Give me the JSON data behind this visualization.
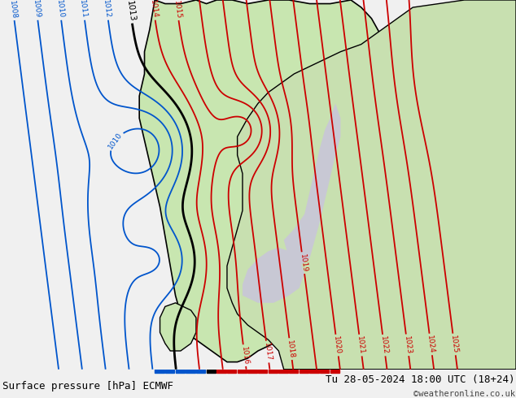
{
  "title_left": "Surface pressure [hPa] ECMWF",
  "title_right": "Tu 28-05-2024 18:00 UTC (18+24)",
  "copyright": "©weatheronline.co.uk",
  "sea_color": "#c8c8d4",
  "land_color": "#c8e6b0",
  "land_color2": "#c8e0b0",
  "bottom_bg": "#f0f0f0",
  "black_line": "#000000",
  "blue_line": "#0055cc",
  "red_line": "#cc0000",
  "title_color": "#000000",
  "font_size": 9,
  "figsize": [
    6.34,
    4.9
  ],
  "dpi": 100,
  "blue_levels": [
    1008,
    1009,
    1010,
    1011,
    1012
  ],
  "black_levels": [
    1013
  ],
  "red_levels": [
    1014,
    1015,
    1016,
    1017,
    1018,
    1019,
    1020,
    1021,
    1022,
    1023,
    1024,
    1025
  ],
  "label_size": 6.5
}
